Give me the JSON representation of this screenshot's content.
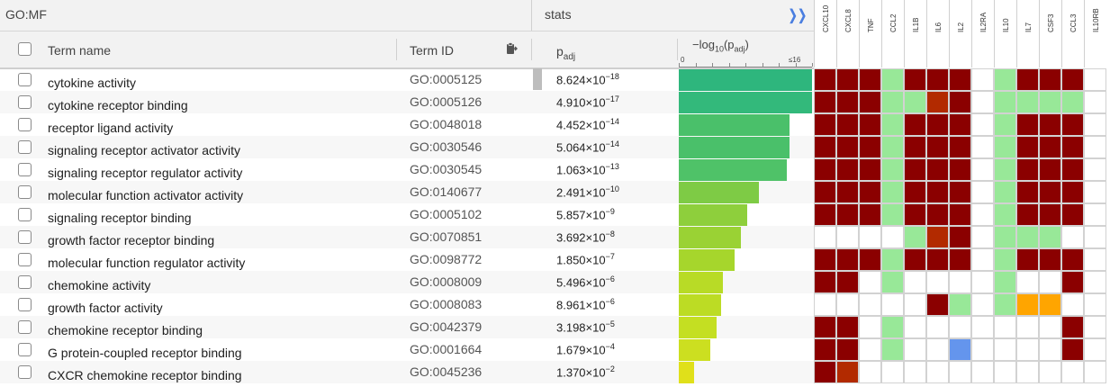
{
  "source_label": "GO:MF",
  "stats_label": "stats",
  "expand_icon": "double-chevron-right",
  "columns": {
    "term_name": "Term name",
    "term_id": "Term ID",
    "padj_main": "p",
    "padj_sub": "adj",
    "log_prefix": "−log",
    "log_base": "10",
    "log_open": "(p",
    "log_sub": "adj",
    "log_close": ")",
    "axis_min": "0",
    "axis_max": "≤16"
  },
  "genes": [
    "CXCL10",
    "CXCL8",
    "TNF",
    "CCL2",
    "IL1B",
    "IL6",
    "IL2",
    "IL2RA",
    "IL10",
    "IL7",
    "CSF3",
    "CCL3",
    "IL10RB"
  ],
  "colors": {
    "dark_red": "#8b0000",
    "mid_red": "#b22a00",
    "light_green": "#98e898",
    "orange": "#ffa500",
    "blue": "#6495ed",
    "white": "#ffffff"
  },
  "rows": [
    {
      "term": "cytokine activity",
      "id": "GO:0005125",
      "mant": "8.624",
      "exp": "−18",
      "neglog": 17.06,
      "bar_color": "#2eb67d",
      "cells": [
        "R",
        "R",
        "R",
        "G",
        "R",
        "R",
        "R",
        "W",
        "G",
        "R",
        "R",
        "R",
        "W"
      ]
    },
    {
      "term": "cytokine receptor binding",
      "id": "GO:0005126",
      "mant": "4.910",
      "exp": "−17",
      "neglog": 16.31,
      "bar_color": "#33b97b",
      "cells": [
        "R",
        "R",
        "R",
        "G",
        "G",
        "M",
        "R",
        "W",
        "G",
        "G",
        "G",
        "G",
        "W"
      ]
    },
    {
      "term": "receptor ligand activity",
      "id": "GO:0048018",
      "mant": "4.452",
      "exp": "−14",
      "neglog": 13.35,
      "bar_color": "#4ac06a",
      "cells": [
        "R",
        "R",
        "R",
        "G",
        "R",
        "R",
        "R",
        "W",
        "G",
        "R",
        "R",
        "R",
        "W"
      ]
    },
    {
      "term": "signaling receptor activator activity",
      "id": "GO:0030546",
      "mant": "5.064",
      "exp": "−14",
      "neglog": 13.3,
      "bar_color": "#4ac06a",
      "cells": [
        "R",
        "R",
        "R",
        "G",
        "R",
        "R",
        "R",
        "W",
        "G",
        "R",
        "R",
        "R",
        "W"
      ]
    },
    {
      "term": "signaling receptor regulator activity",
      "id": "GO:0030545",
      "mant": "1.063",
      "exp": "−13",
      "neglog": 12.97,
      "bar_color": "#4fc268",
      "cells": [
        "R",
        "R",
        "R",
        "G",
        "R",
        "R",
        "R",
        "W",
        "G",
        "R",
        "R",
        "R",
        "W"
      ]
    },
    {
      "term": "molecular function activator activity",
      "id": "GO:0140677",
      "mant": "2.491",
      "exp": "−10",
      "neglog": 9.6,
      "bar_color": "#7ecb45",
      "cells": [
        "R",
        "R",
        "R",
        "G",
        "R",
        "R",
        "R",
        "W",
        "G",
        "R",
        "R",
        "R",
        "W"
      ]
    },
    {
      "term": "signaling receptor binding",
      "id": "GO:0005102",
      "mant": "5.857",
      "exp": "−9",
      "neglog": 8.23,
      "bar_color": "#8ecf3c",
      "cells": [
        "R",
        "R",
        "R",
        "G",
        "R",
        "R",
        "R",
        "W",
        "G",
        "R",
        "R",
        "R",
        "W"
      ]
    },
    {
      "term": "growth factor receptor binding",
      "id": "GO:0070851",
      "mant": "3.692",
      "exp": "−8",
      "neglog": 7.43,
      "bar_color": "#9ad234",
      "cells": [
        "W",
        "W",
        "W",
        "W",
        "G",
        "M",
        "R",
        "W",
        "G",
        "G",
        "G",
        "W",
        "W"
      ]
    },
    {
      "term": "molecular function regulator activity",
      "id": "GO:0098772",
      "mant": "1.850",
      "exp": "−7",
      "neglog": 6.73,
      "bar_color": "#a6d62c",
      "cells": [
        "R",
        "R",
        "R",
        "G",
        "R",
        "R",
        "R",
        "W",
        "G",
        "R",
        "R",
        "R",
        "W"
      ]
    },
    {
      "term": "chemokine activity",
      "id": "GO:0008009",
      "mant": "5.496",
      "exp": "−6",
      "neglog": 5.26,
      "bar_color": "#b8db26",
      "cells": [
        "R",
        "R",
        "W",
        "G",
        "W",
        "W",
        "W",
        "W",
        "G",
        "W",
        "W",
        "R",
        "W"
      ]
    },
    {
      "term": "growth factor activity",
      "id": "GO:0008083",
      "mant": "8.961",
      "exp": "−6",
      "neglog": 5.05,
      "bar_color": "#bcdc24",
      "cells": [
        "W",
        "W",
        "W",
        "W",
        "W",
        "R",
        "G",
        "W",
        "G",
        "O",
        "O",
        "W",
        "W"
      ]
    },
    {
      "term": "chemokine receptor binding",
      "id": "GO:0042379",
      "mant": "3.198",
      "exp": "−5",
      "neglog": 4.5,
      "bar_color": "#c4df22",
      "cells": [
        "R",
        "R",
        "W",
        "G",
        "W",
        "W",
        "W",
        "W",
        "W",
        "W",
        "W",
        "R",
        "W"
      ]
    },
    {
      "term": "G protein-coupled receptor binding",
      "id": "GO:0001664",
      "mant": "1.679",
      "exp": "−4",
      "neglog": 3.78,
      "bar_color": "#ccdf20",
      "cells": [
        "R",
        "R",
        "W",
        "G",
        "W",
        "W",
        "B",
        "W",
        "W",
        "W",
        "W",
        "R",
        "W"
      ]
    },
    {
      "term": "CXCR chemokine receptor binding",
      "id": "GO:0045236",
      "mant": "1.370",
      "exp": "−2",
      "neglog": 1.86,
      "bar_color": "#e0e01a",
      "cells": [
        "R",
        "M",
        "W",
        "W",
        "W",
        "W",
        "W",
        "W",
        "W",
        "W",
        "W",
        "W",
        "W"
      ]
    }
  ]
}
